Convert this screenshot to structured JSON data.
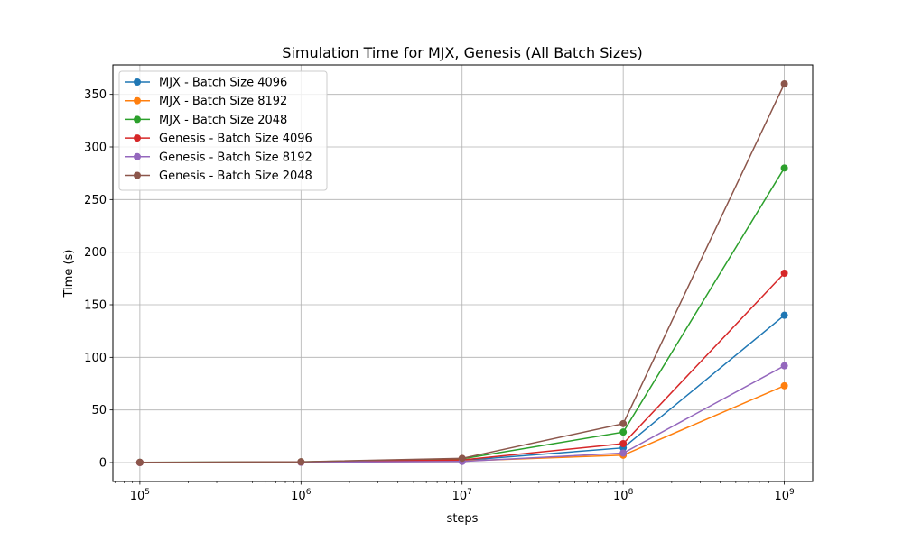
{
  "chart_data": {
    "type": "line",
    "title": "Simulation Time for MJX, Genesis (All Batch Sizes)",
    "xlabel": "steps",
    "ylabel": "Time (s)",
    "xscale": "log",
    "x": [
      100000,
      1000000,
      10000000,
      100000000,
      1000000000
    ],
    "xticks": [
      {
        "value": 100000,
        "base": "10",
        "exp": "5"
      },
      {
        "value": 1000000,
        "base": "10",
        "exp": "6"
      },
      {
        "value": 10000000,
        "base": "10",
        "exp": "7"
      },
      {
        "value": 100000000,
        "base": "10",
        "exp": "8"
      },
      {
        "value": 1000000000,
        "base": "10",
        "exp": "9"
      }
    ],
    "xlim": [
      68000,
      1500000000
    ],
    "ylim": [
      -18,
      378
    ],
    "yticks": [
      "0",
      "50",
      "100",
      "150",
      "200",
      "250",
      "300",
      "350"
    ],
    "grid": true,
    "legend_position": "top-left",
    "series": [
      {
        "name": "MJX - Batch Size 4096",
        "color": "#1f77b4",
        "values": [
          0.1,
          0.4,
          2.0,
          14.0,
          140.0
        ]
      },
      {
        "name": "MJX - Batch Size 8192",
        "color": "#ff7f0e",
        "values": [
          0.1,
          0.3,
          1.5,
          7.0,
          73.0
        ]
      },
      {
        "name": "MJX - Batch Size 2048",
        "color": "#2ca02c",
        "values": [
          0.2,
          0.6,
          3.5,
          29.0,
          280.0
        ]
      },
      {
        "name": "Genesis - Batch Size 4096",
        "color": "#d62728",
        "values": [
          0.1,
          0.5,
          2.5,
          18.0,
          180.0
        ]
      },
      {
        "name": "Genesis - Batch Size 8192",
        "color": "#9467bd",
        "values": [
          0.1,
          0.3,
          1.0,
          9.0,
          92.0
        ]
      },
      {
        "name": "Genesis - Batch Size 2048",
        "color": "#8c564b",
        "values": [
          0.2,
          0.7,
          4.0,
          37.0,
          360.0
        ]
      }
    ]
  }
}
